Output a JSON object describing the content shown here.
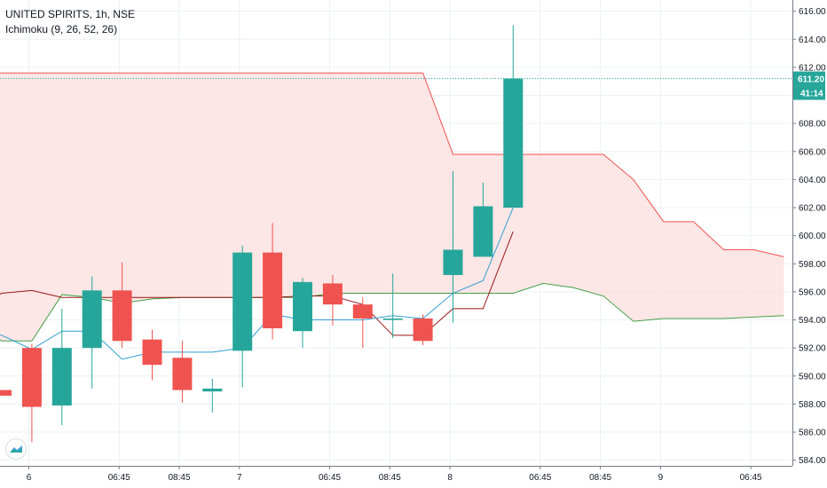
{
  "header": {
    "symbol": "UNITED SPIRITS, 1h, NSE",
    "indicator": "Ichimoku (9, 26, 52, 26)"
  },
  "colors": {
    "up": "#26a69a",
    "down": "#ef5350",
    "tenkan": "#2f9fd0",
    "kijun": "#991515",
    "span_a": "#43a047",
    "span_b": "#ef5350",
    "cloud": "#fde0e0",
    "grid": "#eef0f3",
    "axis_text": "#131722"
  },
  "price_label": {
    "value": "611.20",
    "countdown": "41:14"
  },
  "chart_data": {
    "type": "candlestick",
    "title": "UNITED SPIRITS, 1h, NSE",
    "ylim": [
      583.6,
      616.8
    ],
    "y_ticks": [
      "584.00",
      "586.00",
      "588.00",
      "590.00",
      "592.00",
      "594.00",
      "596.00",
      "598.00",
      "600.00",
      "602.00",
      "604.00",
      "606.00",
      "608.00",
      "610.00",
      "612.00",
      "614.00",
      "616.00"
    ],
    "x_ticks": [
      {
        "i": 0.9,
        "label": "6"
      },
      {
        "i": 3.9,
        "label": "06:45"
      },
      {
        "i": 5.9,
        "label": "08:45"
      },
      {
        "i": 7.9,
        "label": "7"
      },
      {
        "i": 10.9,
        "label": "06:45"
      },
      {
        "i": 12.9,
        "label": "08:45"
      },
      {
        "i": 14.9,
        "label": "8"
      },
      {
        "i": 17.9,
        "label": "06:45"
      },
      {
        "i": 19.9,
        "label": "08:45"
      },
      {
        "i": 21.9,
        "label": "9"
      },
      {
        "i": 24.9,
        "label": "06:45"
      }
    ],
    "candles": [
      {
        "i": 0,
        "o": 589.0,
        "h": 589.0,
        "l": 588.6,
        "c": 588.6
      },
      {
        "i": 1,
        "o": 592.0,
        "h": 592.3,
        "l": 585.3,
        "c": 587.8
      },
      {
        "i": 2,
        "o": 587.9,
        "h": 594.8,
        "l": 586.5,
        "c": 592.0
      },
      {
        "i": 3,
        "o": 592.0,
        "h": 597.1,
        "l": 589.1,
        "c": 596.1
      },
      {
        "i": 4,
        "o": 596.1,
        "h": 598.1,
        "l": 592.0,
        "c": 592.5
      },
      {
        "i": 5,
        "o": 592.6,
        "h": 593.3,
        "l": 589.7,
        "c": 590.8
      },
      {
        "i": 6,
        "o": 591.3,
        "h": 592.5,
        "l": 588.1,
        "c": 589.0
      },
      {
        "i": 7,
        "o": 588.9,
        "h": 589.8,
        "l": 587.4,
        "c": 589.1
      },
      {
        "i": 8,
        "o": 591.8,
        "h": 599.3,
        "l": 589.2,
        "c": 598.8
      },
      {
        "i": 9,
        "o": 598.8,
        "h": 600.9,
        "l": 592.6,
        "c": 593.4
      },
      {
        "i": 10,
        "o": 593.2,
        "h": 597.0,
        "l": 592.0,
        "c": 596.7
      },
      {
        "i": 11,
        "o": 596.6,
        "h": 597.2,
        "l": 593.6,
        "c": 595.1
      },
      {
        "i": 12,
        "o": 595.1,
        "h": 595.6,
        "l": 592.0,
        "c": 594.1
      },
      {
        "i": 13,
        "o": 594.0,
        "h": 597.3,
        "l": 592.7,
        "c": 594.1
      },
      {
        "i": 14,
        "o": 594.1,
        "h": 594.4,
        "l": 592.2,
        "c": 592.5
      },
      {
        "i": 15,
        "o": 597.2,
        "h": 604.6,
        "l": 593.8,
        "c": 599.0
      },
      {
        "i": 16,
        "o": 598.5,
        "h": 603.8,
        "l": 598.5,
        "c": 602.1
      },
      {
        "i": 17,
        "o": 602.0,
        "h": 615.0,
        "l": 602.0,
        "c": 611.2
      }
    ],
    "tenkan": [
      [
        -1,
        593.5
      ],
      [
        0,
        592.9
      ],
      [
        1,
        591.9
      ],
      [
        2,
        593.2
      ],
      [
        3,
        593.2
      ],
      [
        4,
        591.2
      ],
      [
        5,
        591.7
      ],
      [
        6,
        591.7
      ],
      [
        7,
        591.7
      ],
      [
        8,
        592.0
      ],
      [
        9,
        594.4
      ],
      [
        10,
        594.0
      ],
      [
        11,
        594.0
      ],
      [
        12,
        594.0
      ],
      [
        13,
        594.3
      ],
      [
        14,
        594.1
      ],
      [
        15,
        595.9
      ],
      [
        16,
        596.8
      ],
      [
        17,
        602.0
      ]
    ],
    "kijun": [
      [
        -1,
        594.8
      ],
      [
        0,
        595.9
      ],
      [
        1,
        596.1
      ],
      [
        2,
        595.6
      ],
      [
        3,
        595.6
      ],
      [
        4,
        595.6
      ],
      [
        5,
        595.6
      ],
      [
        6,
        595.6
      ],
      [
        7,
        595.6
      ],
      [
        8,
        595.6
      ],
      [
        9,
        595.6
      ],
      [
        10,
        595.7
      ],
      [
        11,
        595.7
      ],
      [
        12,
        595.1
      ],
      [
        13,
        592.9
      ],
      [
        14,
        592.9
      ],
      [
        15,
        594.8
      ],
      [
        16,
        594.8
      ],
      [
        17,
        600.3
      ]
    ],
    "span_a": [
      [
        -1,
        594.0
      ],
      [
        0,
        592.5
      ],
      [
        1,
        592.5
      ],
      [
        2,
        595.8
      ],
      [
        3,
        595.6
      ],
      [
        4,
        595.2
      ],
      [
        5,
        595.5
      ],
      [
        6,
        595.6
      ],
      [
        7,
        595.6
      ],
      [
        8,
        595.6
      ],
      [
        9,
        595.6
      ],
      [
        10,
        595.6
      ],
      [
        11,
        595.9
      ],
      [
        12,
        595.9
      ],
      [
        13,
        595.9
      ],
      [
        14,
        595.9
      ],
      [
        15,
        595.9
      ],
      [
        16,
        595.9
      ],
      [
        17,
        595.9
      ],
      [
        18,
        596.6
      ],
      [
        19,
        596.3
      ],
      [
        20,
        595.7
      ],
      [
        21,
        593.9
      ],
      [
        22,
        594.1
      ],
      [
        23,
        594.1
      ],
      [
        24,
        594.1
      ],
      [
        25,
        594.2
      ],
      [
        26,
        594.3
      ]
    ],
    "span_b": [
      [
        -1,
        611.6
      ],
      [
        0,
        611.6
      ],
      [
        1,
        611.6
      ],
      [
        2,
        611.6
      ],
      [
        3,
        611.6
      ],
      [
        4,
        611.6
      ],
      [
        5,
        611.6
      ],
      [
        6,
        611.6
      ],
      [
        7,
        611.6
      ],
      [
        8,
        611.6
      ],
      [
        9,
        611.6
      ],
      [
        10,
        611.6
      ],
      [
        11,
        611.6
      ],
      [
        12,
        611.6
      ],
      [
        13,
        611.6
      ],
      [
        14,
        611.6
      ],
      [
        15,
        605.8
      ],
      [
        16,
        605.8
      ],
      [
        17,
        605.8
      ],
      [
        18,
        605.8
      ],
      [
        19,
        605.8
      ],
      [
        20,
        605.8
      ],
      [
        21,
        604.0
      ],
      [
        22,
        601.0
      ],
      [
        23,
        601.0
      ],
      [
        24,
        599.0
      ],
      [
        25,
        599.0
      ],
      [
        26,
        598.5
      ]
    ],
    "last_price": 611.2
  }
}
